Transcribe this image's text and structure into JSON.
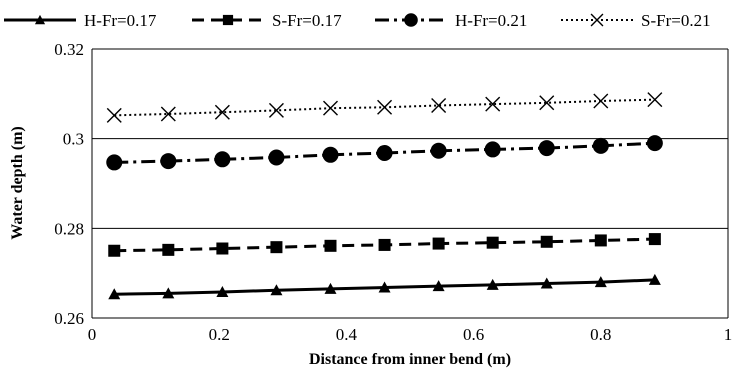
{
  "chart_data": {
    "type": "line",
    "xlabel": "Distance from inner bend (m)",
    "ylabel": "Water depth (m)",
    "xlim": [
      0,
      1
    ],
    "ylim": [
      0.26,
      0.32
    ],
    "xticks": [
      "0",
      "0.2",
      "0.4",
      "0.6",
      "0.8",
      "1"
    ],
    "yticks": [
      "0.26",
      "0.28",
      "0.3",
      "0.32"
    ],
    "grid": "horizontal",
    "legend_position": "top",
    "x": [
      0.035,
      0.12,
      0.205,
      0.29,
      0.375,
      0.46,
      0.545,
      0.63,
      0.715,
      0.8,
      0.885
    ],
    "series": [
      {
        "name": "H-Fr=0.17",
        "line": "solid",
        "marker": "triangle",
        "values": [
          0.2653,
          0.2655,
          0.2658,
          0.2662,
          0.2665,
          0.2668,
          0.2671,
          0.2674,
          0.2677,
          0.268,
          0.2685
        ]
      },
      {
        "name": "S-Fr=0.17",
        "line": "dashed",
        "marker": "square",
        "values": [
          0.275,
          0.2752,
          0.2755,
          0.2758,
          0.2761,
          0.2763,
          0.2766,
          0.2768,
          0.277,
          0.2773,
          0.2776
        ]
      },
      {
        "name": "H-Fr=0.21",
        "line": "dash-dot",
        "marker": "circle",
        "values": [
          0.2947,
          0.295,
          0.2954,
          0.2958,
          0.2964,
          0.2968,
          0.2973,
          0.2976,
          0.2979,
          0.2984,
          0.299
        ]
      },
      {
        "name": "S-Fr=0.21",
        "line": "dotted",
        "marker": "x",
        "values": [
          0.3052,
          0.3055,
          0.3059,
          0.3063,
          0.3068,
          0.307,
          0.3074,
          0.3077,
          0.308,
          0.3084,
          0.3087
        ]
      }
    ],
    "colors": {
      "line": "#000000",
      "axis": "#000000",
      "grid": "#000000",
      "background": "#ffffff"
    }
  }
}
